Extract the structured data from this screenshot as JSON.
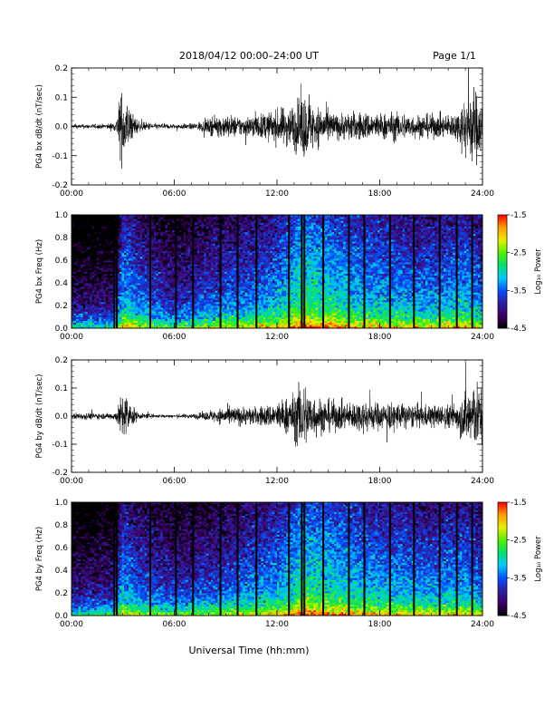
{
  "header": {
    "title": "2018/04/12  00:00–24:00 UT",
    "page": "Page 1/1"
  },
  "footer": {
    "xlabel": "Universal Time (hh:mm)"
  },
  "colors": {
    "trace": "#000000",
    "colormap": [
      "#000000",
      "#3c0064",
      "#2e1ea0",
      "#0050ff",
      "#00c8ff",
      "#00e070",
      "#50f000",
      "#e6f000",
      "#ffa000",
      "#ff0000"
    ]
  },
  "chart_data": [
    {
      "type": "line",
      "ylabel": "PG4 bx dB/dt (nT/sec)",
      "x_ticks": [
        "00:00",
        "06:00",
        "12:00",
        "18:00",
        "24:00"
      ],
      "y_ticks": [
        "-0.2",
        "-0.1",
        "0.0",
        "0.1",
        "0.2"
      ],
      "xlim": [
        0,
        24
      ],
      "ylim": [
        -0.2,
        0.2
      ],
      "x_unit": "hours UT",
      "series": [
        {
          "x": [
            0,
            1,
            2,
            2.6,
            2.8,
            3.0,
            3.3,
            3.6,
            4,
            5,
            6,
            7,
            8,
            8.5,
            9,
            10,
            10.8,
            11.5,
            12,
            12.4,
            12.9,
            13.5,
            14.2,
            15,
            15.5,
            16,
            17,
            18,
            19,
            20,
            21,
            22,
            22.5,
            23,
            23.5,
            24
          ],
          "amplitude": [
            0.008,
            0.01,
            0.01,
            0.02,
            0.13,
            0.15,
            0.1,
            0.05,
            0.02,
            0.012,
            0.01,
            0.012,
            0.03,
            0.04,
            0.05,
            0.04,
            0.05,
            0.06,
            0.07,
            0.08,
            0.09,
            0.14,
            0.09,
            0.07,
            0.05,
            0.06,
            0.06,
            0.055,
            0.06,
            0.05,
            0.05,
            0.05,
            0.06,
            0.13,
            0.17,
            0.1
          ]
        }
      ]
    },
    {
      "type": "heatmap",
      "ylabel": "PG4 bx Freq (Hz)",
      "colorbar_label": "Log₁₀ Power",
      "colorbar_ticks": [
        "-1.5",
        "-2.5",
        "-3.5",
        "-4.5"
      ],
      "clim": [
        -4.5,
        -1.5
      ],
      "x_ticks": [
        "00:00",
        "06:00",
        "12:00",
        "18:00",
        "24:00"
      ],
      "y_ticks": [
        "0.0",
        "0.2",
        "0.4",
        "0.6",
        "0.8",
        "1.0"
      ],
      "xlim": [
        0,
        24
      ],
      "ylim": [
        0,
        1.0
      ],
      "gap_lines_hours": [
        2.5,
        2.65,
        4.6,
        6.1,
        7.1,
        8.7,
        9.7,
        10.8,
        12.7,
        13.45,
        13.6,
        14.7,
        16.2,
        17.1,
        18.6,
        20.0,
        21.5,
        22.5,
        23.4
      ],
      "broadband_power": [
        {
          "x": 0,
          "v": -4.0
        },
        {
          "x": 2.5,
          "v": -3.9
        },
        {
          "x": 3.0,
          "v": -3.0
        },
        {
          "x": 4.0,
          "v": -3.3
        },
        {
          "x": 6.0,
          "v": -3.7
        },
        {
          "x": 8.0,
          "v": -3.4
        },
        {
          "x": 10.0,
          "v": -3.3
        },
        {
          "x": 12.0,
          "v": -3.1
        },
        {
          "x": 13.5,
          "v": -2.6
        },
        {
          "x": 15.0,
          "v": -2.8
        },
        {
          "x": 17.0,
          "v": -3.0
        },
        {
          "x": 19.0,
          "v": -3.1
        },
        {
          "x": 21.0,
          "v": -3.2
        },
        {
          "x": 23.0,
          "v": -3.0
        },
        {
          "x": 24.0,
          "v": -3.3
        }
      ]
    },
    {
      "type": "line",
      "ylabel": "PG4 by dB/dt (nT/sec)",
      "x_ticks": [
        "00:00",
        "06:00",
        "12:00",
        "18:00",
        "24:00"
      ],
      "y_ticks": [
        "-0.2",
        "-0.1",
        "0.0",
        "0.1",
        "0.2"
      ],
      "xlim": [
        0,
        24
      ],
      "ylim": [
        -0.2,
        0.2
      ],
      "x_unit": "hours UT",
      "series": [
        {
          "x": [
            0,
            1,
            2,
            2.6,
            2.9,
            3.1,
            3.4,
            3.7,
            4,
            5,
            6,
            7,
            8,
            8.5,
            9,
            10,
            10.8,
            11.5,
            12,
            12.5,
            13,
            13.5,
            14,
            14.5,
            15,
            16,
            17,
            18,
            19,
            20,
            21,
            22,
            22.5,
            23,
            23.5,
            24
          ],
          "amplitude": [
            0.015,
            0.015,
            0.012,
            0.02,
            0.09,
            0.11,
            0.06,
            0.03,
            0.012,
            0.008,
            0.008,
            0.01,
            0.02,
            0.03,
            0.04,
            0.04,
            0.04,
            0.05,
            0.06,
            0.08,
            0.1,
            0.17,
            0.1,
            0.08,
            0.07,
            0.06,
            0.07,
            0.06,
            0.06,
            0.05,
            0.05,
            0.05,
            0.06,
            0.12,
            0.16,
            0.1
          ]
        }
      ]
    },
    {
      "type": "heatmap",
      "ylabel": "PG4 by Freq (Hz)",
      "colorbar_label": "Log₁₀ Power",
      "colorbar_ticks": [
        "-1.5",
        "-2.5",
        "-3.5",
        "-4.5"
      ],
      "clim": [
        -4.5,
        -1.5
      ],
      "x_ticks": [
        "00:00",
        "06:00",
        "12:00",
        "18:00",
        "24:00"
      ],
      "y_ticks": [
        "0.0",
        "0.2",
        "0.4",
        "0.6",
        "0.8",
        "1.0"
      ],
      "xlim": [
        0,
        24
      ],
      "ylim": [
        0,
        1.0
      ],
      "gap_lines_hours": [
        2.5,
        2.65,
        4.6,
        6.1,
        7.1,
        8.7,
        9.7,
        10.8,
        12.7,
        13.45,
        13.6,
        14.7,
        16.2,
        17.1,
        18.6,
        20.0,
        21.5,
        22.5,
        23.4
      ],
      "broadband_power": [
        {
          "x": 0,
          "v": -3.9
        },
        {
          "x": 2.5,
          "v": -3.8
        },
        {
          "x": 3.0,
          "v": -3.1
        },
        {
          "x": 4.0,
          "v": -3.4
        },
        {
          "x": 6.0,
          "v": -3.6
        },
        {
          "x": 8.0,
          "v": -3.5
        },
        {
          "x": 10.0,
          "v": -3.3
        },
        {
          "x": 12.0,
          "v": -3.1
        },
        {
          "x": 13.5,
          "v": -2.7
        },
        {
          "x": 15.0,
          "v": -2.8
        },
        {
          "x": 17.0,
          "v": -3.0
        },
        {
          "x": 19.0,
          "v": -3.1
        },
        {
          "x": 21.0,
          "v": -3.2
        },
        {
          "x": 23.0,
          "v": -3.1
        },
        {
          "x": 24.0,
          "v": -3.3
        }
      ]
    }
  ]
}
